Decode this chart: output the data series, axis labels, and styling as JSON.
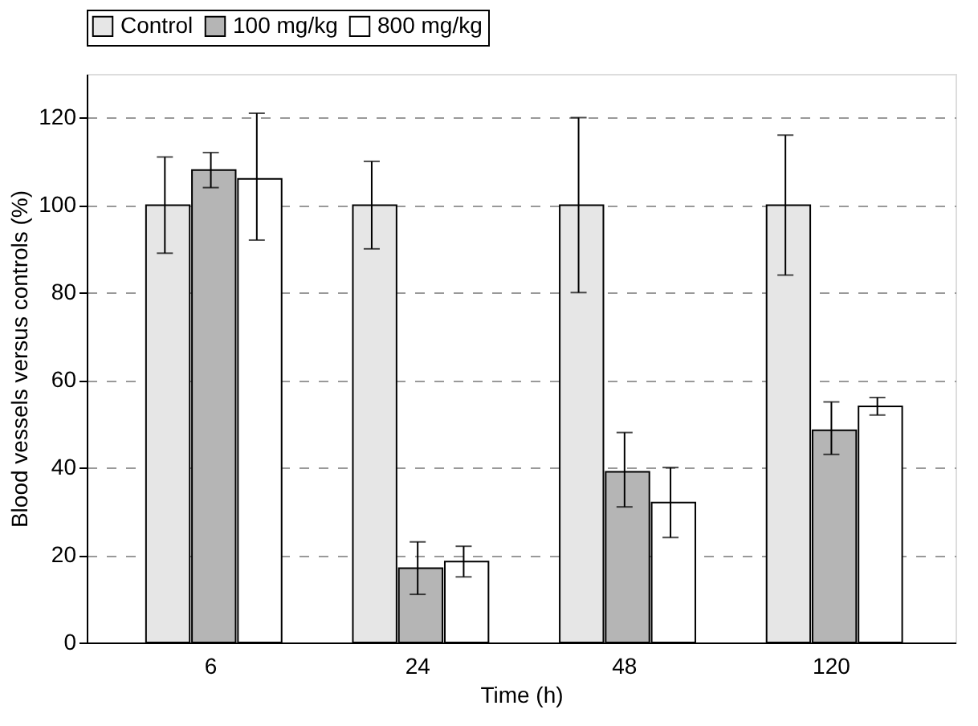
{
  "chart_data": {
    "type": "bar",
    "xlabel": "Time (h)",
    "ylabel": "Blood vessels versus controls (%)",
    "categories": [
      "6",
      "24",
      "48",
      "120"
    ],
    "series": [
      {
        "name": "Control",
        "color": "#e6e6e6",
        "values": [
          100,
          100,
          100,
          100
        ],
        "errors": [
          [
            89,
            111
          ],
          [
            90,
            110
          ],
          [
            80,
            120
          ],
          [
            84,
            116
          ]
        ]
      },
      {
        "name": "100 mg/kg",
        "color": "#b5b5b5",
        "values": [
          108,
          17,
          39,
          48.5
        ],
        "errors": [
          [
            104,
            112
          ],
          [
            11,
            23
          ],
          [
            31,
            48
          ],
          [
            43,
            55
          ]
        ]
      },
      {
        "name": "800 mg/kg",
        "color": "#ffffff",
        "values": [
          106,
          18.5,
          32,
          54
        ],
        "errors": [
          [
            92,
            121
          ],
          [
            15,
            22
          ],
          [
            24,
            40
          ],
          [
            52,
            56
          ]
        ]
      }
    ],
    "ylim": [
      0,
      130
    ],
    "yticks": [
      0,
      20,
      40,
      60,
      80,
      100,
      120
    ],
    "grid": "y",
    "legend": "top"
  }
}
